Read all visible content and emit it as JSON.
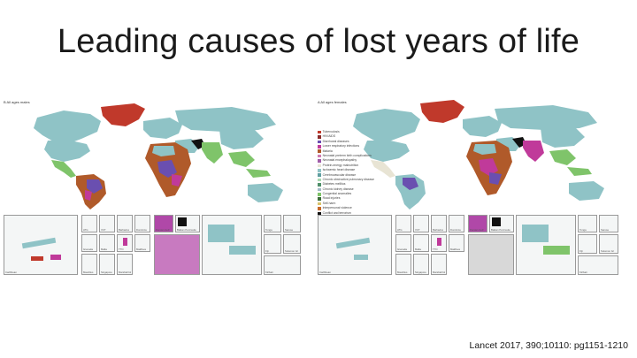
{
  "slide": {
    "title": "Leading causes of lost years of life",
    "citation": "Lancet 2017, 390;10110: pg1151-1210"
  },
  "colors": {
    "ocean": "#ffffff",
    "base_land": "#8fc3c6",
    "dark_red": "#c0392b",
    "brown": "#b05a2a",
    "purple": "#6a4fb0",
    "magenta": "#c03a9a",
    "green": "#7fc46a",
    "black": "#111111",
    "pale": "#e8e4d4"
  },
  "panels": [
    {
      "id": "left",
      "label": "B  All ages males",
      "legend": [],
      "insets": [
        {
          "label": "Caribbean"
        },
        {
          "label": "ATG"
        },
        {
          "label": "VCT"
        },
        {
          "label": "Barbados"
        },
        {
          "label": "Dominica"
        },
        {
          "label": "Grenada"
        },
        {
          "label": "Malta"
        },
        {
          "label": "TTO"
        },
        {
          "label": "Maldives"
        },
        {
          "label": "Mauritius"
        },
        {
          "label": "Singapore"
        },
        {
          "label": "Marshall Isl"
        },
        {
          "label": "Persian Gulf"
        },
        {
          "label": "Balkan Peninsula"
        },
        {
          "label": "Tonga"
        },
        {
          "label": "Samoa"
        },
        {
          "label": "Fiji"
        },
        {
          "label": "Solomon Isl"
        },
        {
          "label": "Kiribati"
        }
      ]
    },
    {
      "id": "right",
      "label": "A  All ages females",
      "legend": [
        {
          "label": "Tuberculosis",
          "color": "#c0392b"
        },
        {
          "label": "HIV/AIDS",
          "color": "#8a2b2b"
        },
        {
          "label": "Diarrhoeal diseases",
          "color": "#6a4fb0"
        },
        {
          "label": "Lower respiratory infections",
          "color": "#c03a9a"
        },
        {
          "label": "Malaria",
          "color": "#b05a2a"
        },
        {
          "label": "Neonatal preterm birth complications",
          "color": "#d07ab0"
        },
        {
          "label": "Neonatal encephalopathy",
          "color": "#a05ca8"
        },
        {
          "label": "Protein-energy malnutrition",
          "color": "#e8e4d4"
        },
        {
          "label": "Ischaemic heart disease",
          "color": "#8fc3c6"
        },
        {
          "label": "Cerebrovascular disease",
          "color": "#5f9ea0"
        },
        {
          "label": "Chronic obstructive pulmonary disease",
          "color": "#a8d8b0"
        },
        {
          "label": "Diabetes mellitus",
          "color": "#4f8f6a"
        },
        {
          "label": "Chronic kidney disease",
          "color": "#9fb7c4"
        },
        {
          "label": "Congenital anomalies",
          "color": "#7fc46a"
        },
        {
          "label": "Road injuries",
          "color": "#3d6d3a"
        },
        {
          "label": "Self-harm",
          "color": "#d9c36a"
        },
        {
          "label": "Interpersonal violence",
          "color": "#c86a2a"
        },
        {
          "label": "Conflict and terrorism",
          "color": "#111111"
        }
      ],
      "insets": [
        {
          "label": "Caribbean"
        },
        {
          "label": "ATG"
        },
        {
          "label": "VCT"
        },
        {
          "label": "Barbados"
        },
        {
          "label": "Dominica"
        },
        {
          "label": "Grenada"
        },
        {
          "label": "Malta"
        },
        {
          "label": "TTO"
        },
        {
          "label": "Maldives"
        },
        {
          "label": "Mauritius"
        },
        {
          "label": "Singapore"
        },
        {
          "label": "Marshall Isl"
        },
        {
          "label": "Persian Gulf"
        },
        {
          "label": "Balkan Peninsula"
        },
        {
          "label": "Tonga"
        },
        {
          "label": "Samoa"
        },
        {
          "label": "Fiji"
        },
        {
          "label": "Solomon Isl"
        },
        {
          "label": "Kiribati"
        }
      ]
    }
  ]
}
